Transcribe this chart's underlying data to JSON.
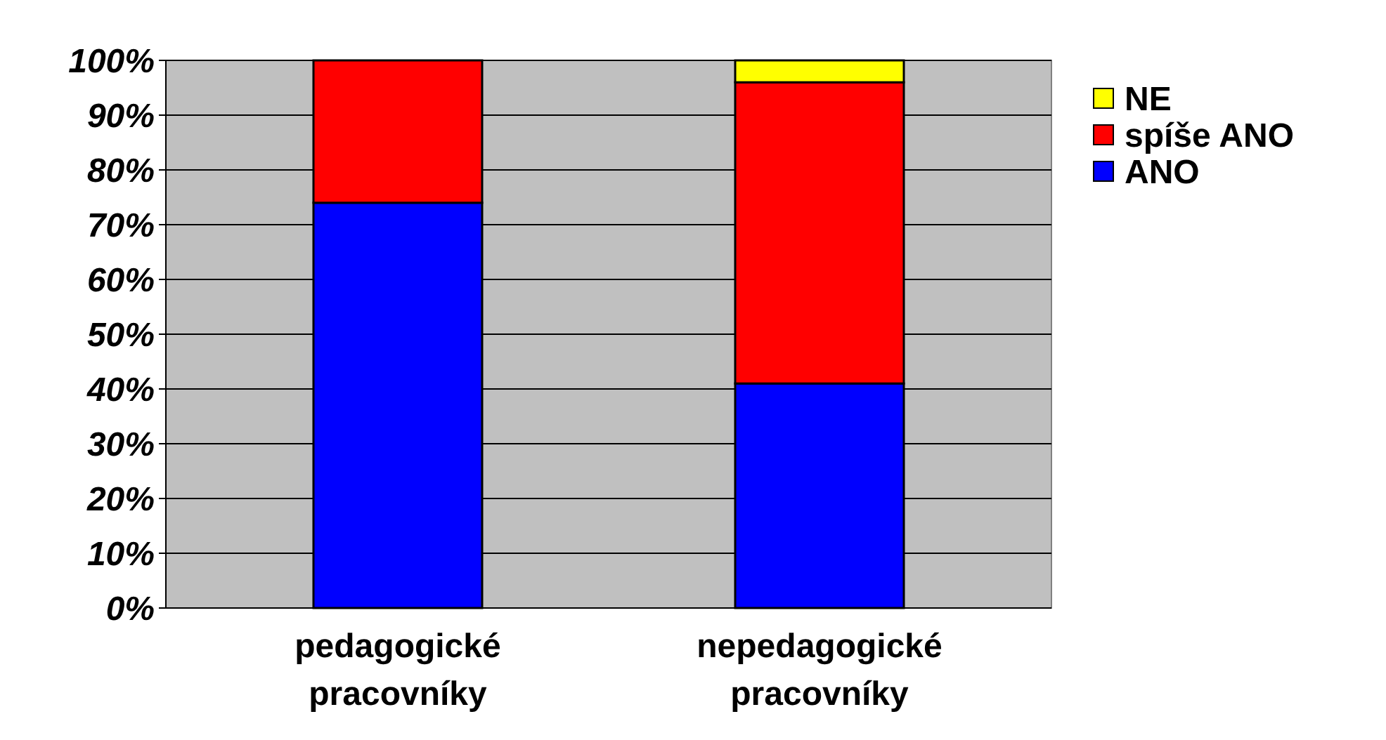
{
  "chart_data": {
    "type": "bar",
    "stacked": true,
    "categories": [
      "pedagogické pracovníky",
      "nepedagogické pracovníky"
    ],
    "series": [
      {
        "name": "ANO",
        "color": "#0000ff",
        "values": [
          74,
          41
        ]
      },
      {
        "name": "spíše ANO",
        "color": "#ff0000",
        "values": [
          26,
          55
        ]
      },
      {
        "name": "NE",
        "color": "#ffff00",
        "values": [
          0,
          4
        ]
      }
    ],
    "ylim": [
      0,
      100
    ],
    "yticks": [
      {
        "value": 0,
        "label": "0%"
      },
      {
        "value": 10,
        "label": "10%"
      },
      {
        "value": 20,
        "label": "20%"
      },
      {
        "value": 30,
        "label": "30%"
      },
      {
        "value": 40,
        "label": "40%"
      },
      {
        "value": 50,
        "label": "50%"
      },
      {
        "value": 60,
        "label": "60%"
      },
      {
        "value": 70,
        "label": "70%"
      },
      {
        "value": 80,
        "label": "80%"
      },
      {
        "value": 90,
        "label": "90%"
      },
      {
        "value": 100,
        "label": "100%"
      }
    ],
    "grid": "y",
    "legend": "right"
  }
}
